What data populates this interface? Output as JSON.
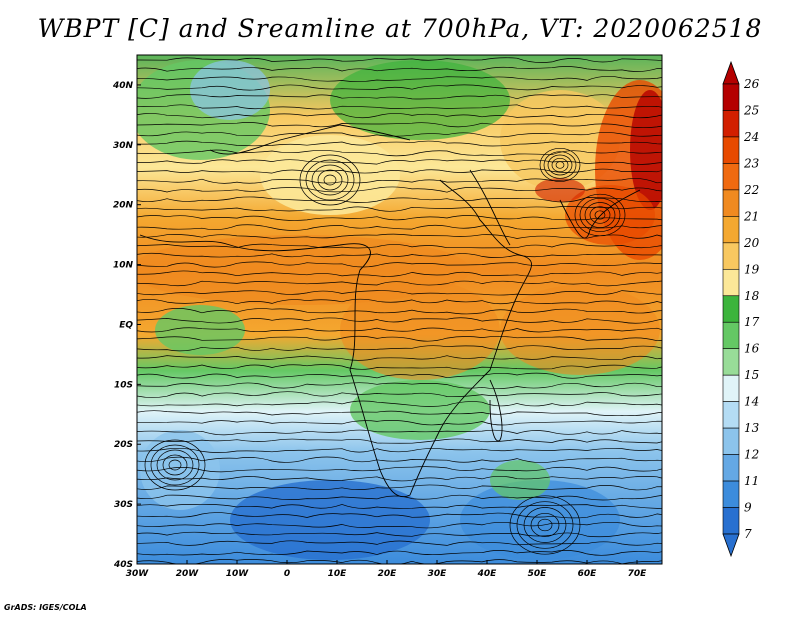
{
  "title": "WBPT [C] and Sreamline at 700hPa, VT: 2020062518",
  "credit": "GrADS: IGES/COLA",
  "map": {
    "lat_labels": [
      "40N",
      "30N",
      "20N",
      "10N",
      "EQ",
      "10S",
      "20S",
      "30S",
      "40S"
    ],
    "lon_labels": [
      "30W",
      "20W",
      "10W",
      "0",
      "10E",
      "20E",
      "30E",
      "40E",
      "50E",
      "60E",
      "70E"
    ],
    "lat_range": [
      -40,
      45
    ],
    "lon_range": [
      -30,
      75
    ]
  },
  "colorbar": {
    "labels": [
      "26",
      "25",
      "24",
      "23",
      "22",
      "21",
      "20",
      "19",
      "18",
      "17",
      "16",
      "15",
      "14",
      "13",
      "12",
      "11",
      "9",
      "7"
    ],
    "colors": [
      "#b40000",
      "#d21f00",
      "#e84a00",
      "#f06a10",
      "#f08a20",
      "#f4a830",
      "#f8c860",
      "#fce898",
      "#3cb43c",
      "#64c864",
      "#98dc98",
      "#e0f4f8",
      "#b4dcf4",
      "#8cc4ec",
      "#64a8e4",
      "#3c8cdc",
      "#2870d0"
    ]
  }
}
